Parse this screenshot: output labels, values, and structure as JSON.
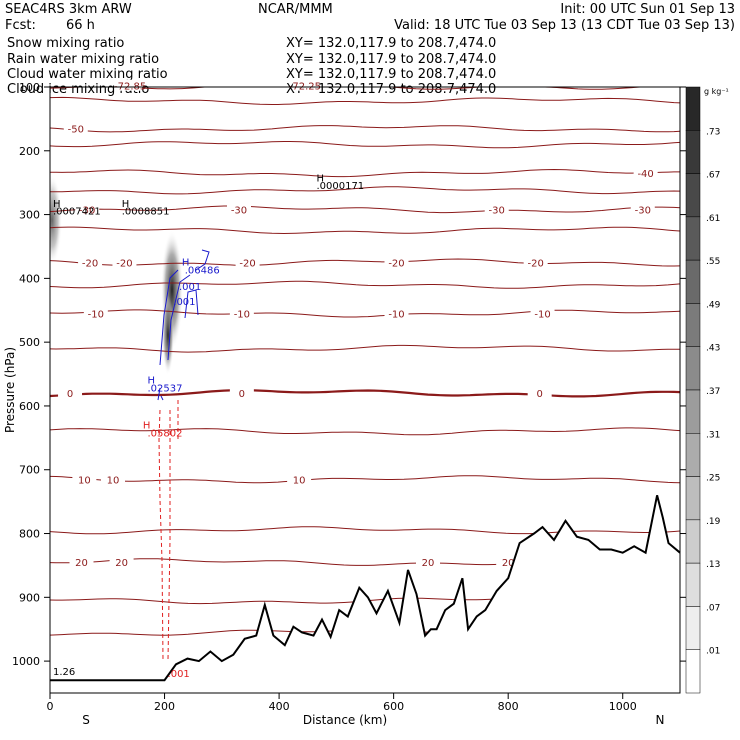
{
  "header": {
    "model": "SEAC4RS  3km ARW",
    "org": "NCAR/MMM",
    "init": "Init: 00 UTC Sun 01 Sep 13",
    "fcst_label": "Fcst:",
    "fcst_value": "66 h",
    "valid": "Valid: 18 UTC Tue 03 Sep 13 (13 CDT Tue 03 Sep 13)",
    "fields": [
      {
        "name": "Snow mixing ratio",
        "xy": "XY= 132.0,117.9 to 208.7,474.0",
        "color": "#000000"
      },
      {
        "name": "Rain water mixing ratio",
        "xy": "XY= 132.0,117.9 to 208.7,474.0",
        "color": "#e02020"
      },
      {
        "name": "Cloud water mixing ratio",
        "xy": "XY= 132.0,117.9 to 208.7,474.0",
        "color": "#1a1acc"
      },
      {
        "name": "Cloud ice mixing ratio",
        "xy": "XY= 132.0,117.9 to 208.7,474.0",
        "color": "#000000"
      }
    ]
  },
  "colorbar": {
    "unit": "g kg⁻¹",
    "labels": [
      ".73",
      ".67",
      ".61",
      ".55",
      ".49",
      ".43",
      ".37",
      ".31",
      ".25",
      ".19",
      ".13",
      ".07",
      ".01"
    ]
  },
  "chart_data": {
    "type": "heatmap",
    "xlabel": "Distance (km)",
    "ylabel": "Pressure (hPa)",
    "xlim": [
      0,
      1100
    ],
    "ylim": [
      1050,
      100
    ],
    "xticks": [
      0,
      200,
      400,
      600,
      800,
      1000
    ],
    "yticks": [
      100,
      200,
      300,
      400,
      500,
      600,
      700,
      800,
      900,
      1000
    ],
    "x_end_labels": {
      "left": "S",
      "right": "N"
    },
    "temperature_contours": [
      {
        "value": -72.85,
        "p": 98,
        "labels": [
          {
            "x": 140,
            "text": "-72.85"
          }
        ]
      },
      {
        "value": -72.25,
        "p": 98,
        "labels": [
          {
            "x": 445,
            "text": "-72.25"
          }
        ]
      },
      {
        "value": -60,
        "p": 122,
        "labels": []
      },
      {
        "value": -50,
        "p": 165,
        "labels": [
          {
            "x": 45,
            "text": "-50"
          }
        ]
      },
      {
        "value": -45,
        "p": 190,
        "labels": []
      },
      {
        "value": -40,
        "p": 235,
        "labels": [
          {
            "x": 1040,
            "text": "-40"
          }
        ]
      },
      {
        "value": -35,
        "p": 262,
        "labels": []
      },
      {
        "value": -30,
        "p": 292,
        "labels": [
          {
            "x": 65,
            "text": "-30"
          },
          {
            "x": 330,
            "text": "-30"
          },
          {
            "x": 780,
            "text": "-30"
          },
          {
            "x": 1035,
            "text": "-30"
          }
        ]
      },
      {
        "value": -25,
        "p": 325,
        "labels": []
      },
      {
        "value": -20,
        "p": 375,
        "labels": [
          {
            "x": 70,
            "text": "-20"
          },
          {
            "x": 130,
            "text": "-20"
          },
          {
            "x": 345,
            "text": "-20"
          },
          {
            "x": 605,
            "text": "-20"
          },
          {
            "x": 848,
            "text": "-20"
          }
        ]
      },
      {
        "value": -15,
        "p": 410,
        "labels": []
      },
      {
        "value": -10,
        "p": 455,
        "labels": [
          {
            "x": 80,
            "text": "-10"
          },
          {
            "x": 335,
            "text": "-10"
          },
          {
            "x": 605,
            "text": "-10"
          },
          {
            "x": 860,
            "text": "-10"
          }
        ]
      },
      {
        "value": -5,
        "p": 510,
        "labels": []
      },
      {
        "value": 0,
        "p": 580,
        "labels": [
          {
            "x": 35,
            "text": "0"
          },
          {
            "x": 335,
            "text": "0"
          },
          {
            "x": 855,
            "text": "0"
          }
        ]
      },
      {
        "value": 5,
        "p": 640,
        "labels": []
      },
      {
        "value": 10,
        "p": 715,
        "labels": [
          {
            "x": 60,
            "text": "10"
          },
          {
            "x": 110,
            "text": "10"
          },
          {
            "x": 435,
            "text": "10"
          }
        ]
      },
      {
        "value": 15,
        "p": 795,
        "labels": []
      },
      {
        "value": 20,
        "p": 845,
        "labels": [
          {
            "x": 55,
            "text": "20"
          },
          {
            "x": 125,
            "text": "20"
          },
          {
            "x": 660,
            "text": "20"
          },
          {
            "x": 800,
            "text": "20"
          },
          {
            "x": 1006,
            "text": "20"
          }
        ]
      },
      {
        "value": 25,
        "p": 905,
        "labels": []
      },
      {
        "value": 30,
        "p": 955,
        "labels": [
          {
            "x": 605,
            "text": "30"
          },
          {
            "x": 760,
            "text": "30"
          },
          {
            "x": 965,
            "text": "30"
          }
        ]
      },
      {
        "value": 30,
        "p": 1035,
        "labels": [
          {
            "x": 130,
            "text": "30"
          }
        ]
      }
    ],
    "terrain": {
      "x": [
        0,
        100,
        200,
        220,
        240,
        260,
        280,
        300,
        320,
        340,
        360,
        375,
        390,
        410,
        425,
        440,
        460,
        475,
        490,
        505,
        520,
        540,
        555,
        570,
        590,
        610,
        625,
        640,
        655,
        665,
        675,
        690,
        705,
        720,
        730,
        745,
        760,
        780,
        800,
        820,
        845,
        860,
        880,
        900,
        920,
        940,
        960,
        980,
        1000,
        1020,
        1040,
        1060,
        1070,
        1080,
        1100
      ],
      "p": [
        1030,
        1030,
        1030,
        1005,
        996,
        1000,
        985,
        1000,
        990,
        965,
        960,
        912,
        960,
        975,
        946,
        955,
        960,
        935,
        962,
        920,
        930,
        885,
        900,
        925,
        890,
        940,
        857,
        895,
        960,
        950,
        950,
        920,
        910,
        870,
        950,
        930,
        920,
        890,
        870,
        815,
        800,
        790,
        810,
        780,
        805,
        810,
        825,
        825,
        830,
        820,
        830,
        740,
        775,
        815,
        830
      ]
    },
    "field_labels": [
      {
        "x": 0,
        "p": 288,
        "text": "H",
        "color": "#000000"
      },
      {
        "x": 0,
        "p": 300,
        "text": ".0007421",
        "color": "#000000"
      },
      {
        "x": 120,
        "p": 288,
        "text": "H",
        "color": "#000000"
      },
      {
        "x": 120,
        "p": 300,
        "text": ".0008851",
        "color": "#000000"
      },
      {
        "x": 460,
        "p": 248,
        "text": "H",
        "color": "#000000"
      },
      {
        "x": 460,
        "p": 260,
        "text": ".0000171",
        "color": "#000000"
      },
      {
        "x": 225,
        "p": 380,
        "text": "H",
        "color": "#1a1acc"
      },
      {
        "x": 230,
        "p": 392,
        "text": ".06486",
        "color": "#1a1acc"
      },
      {
        "x": 220,
        "p": 418,
        "text": ".001",
        "color": "#1a1acc"
      },
      {
        "x": 210,
        "p": 442,
        "text": ".001",
        "color": "#1a1acc"
      },
      {
        "x": 165,
        "p": 565,
        "text": "H",
        "color": "#1a1acc"
      },
      {
        "x": 165,
        "p": 577,
        "text": ".02537",
        "color": "#1a1acc"
      },
      {
        "x": 157,
        "p": 635,
        "text": "H",
        "color": "#e02020"
      },
      {
        "x": 165,
        "p": 648,
        "text": ".05802",
        "color": "#e02020"
      },
      {
        "x": 0,
        "p": 1022,
        "text": "1.26",
        "color": "#000000"
      },
      {
        "x": 200,
        "p": 1025,
        "text": ".001",
        "color": "#e02020"
      }
    ]
  }
}
